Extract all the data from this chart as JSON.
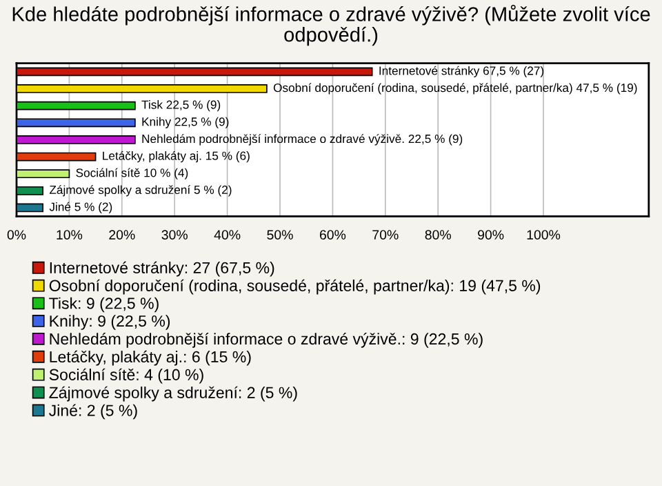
{
  "chart_data": {
    "type": "bar",
    "orientation": "horizontal",
    "title": "Kde hledáte podrobnější informace o zdravé výživě? (Můžete zvolit více odpovědí.)",
    "categories": [
      null,
      null,
      null,
      null,
      null,
      null,
      null,
      null,
      null
    ],
    "series": [
      {
        "name": "Internetové stránky: 27 (67,5 %)",
        "color": "#c8180c",
        "values": [
          67.5,
          null,
          null,
          null,
          null,
          null,
          null,
          null,
          null
        ],
        "value_labels": [
          "Internetové stránky 67,5 % (27)",
          null,
          null,
          null,
          null,
          null,
          null,
          null,
          null
        ]
      },
      {
        "name": "Osobní doporučení (rodina, sousedé, přátelé, partner/ka): 19 (47,5 %)",
        "color": "#f0d800",
        "values": [
          null,
          47.5,
          null,
          null,
          null,
          null,
          null,
          null,
          null
        ],
        "value_labels": [
          null,
          "Osobní doporučení (rodina, sousedé, přátelé, partner/ka) 47,5 % (19)",
          null,
          null,
          null,
          null,
          null,
          null,
          null
        ]
      },
      {
        "name": "Tisk: 9 (22,5 %)",
        "color": "#18c018",
        "values": [
          null,
          null,
          22.5,
          null,
          null,
          null,
          null,
          null,
          null
        ],
        "value_labels": [
          null,
          null,
          "Tisk 22,5 % (9)",
          null,
          null,
          null,
          null,
          null,
          null
        ]
      },
      {
        "name": "Knihy: 9 (22,5 %)",
        "color": "#3c64e8",
        "values": [
          null,
          null,
          null,
          22.5,
          null,
          null,
          null,
          null,
          null
        ],
        "value_labels": [
          null,
          null,
          null,
          "Knihy 22,5 % (9)",
          null,
          null,
          null,
          null,
          null
        ]
      },
      {
        "name": "Nehledám podrobnější informace o zdravé výživě.: 9 (22,5 %)",
        "color": "#c018d0",
        "values": [
          null,
          null,
          null,
          null,
          22.5,
          null,
          null,
          null,
          null
        ],
        "value_labels": [
          null,
          null,
          null,
          null,
          "Nehledám podrobnější informace o zdravé výživě. 22,5 % (9)",
          null,
          null,
          null,
          null
        ]
      },
      {
        "name": "Letáčky, plakáty aj.: 6 (15 %)",
        "color": "#e03c0c",
        "values": [
          null,
          null,
          null,
          null,
          null,
          15,
          null,
          null,
          null
        ],
        "value_labels": [
          null,
          null,
          null,
          null,
          null,
          "Letáčky, plakáty aj. 15 % (6)",
          null,
          null,
          null
        ]
      },
      {
        "name": "Sociální sítě: 4 (10 %)",
        "color": "#c0f070",
        "values": [
          null,
          null,
          null,
          null,
          null,
          null,
          10,
          null,
          null
        ],
        "value_labels": [
          null,
          null,
          null,
          null,
          null,
          null,
          "Sociální sítě 10 % (4)",
          null,
          null
        ]
      },
      {
        "name": "Zájmové spolky a sdružení: 2 (5 %)",
        "color": "#109050",
        "values": [
          null,
          null,
          null,
          null,
          null,
          null,
          null,
          5,
          null
        ],
        "value_labels": [
          null,
          null,
          null,
          null,
          null,
          null,
          null,
          "Zájmové spolky a sdružení 5 % (2)",
          null
        ]
      },
      {
        "name": "Jiné: 2 (5 %)",
        "color": "#1c7890",
        "values": [
          null,
          null,
          null,
          null,
          null,
          null,
          null,
          null,
          5
        ],
        "value_labels": [
          null,
          null,
          null,
          null,
          null,
          null,
          null,
          null,
          "Jiné 5 % (2)"
        ]
      }
    ],
    "xlim": [
      0,
      120
    ],
    "xticks": [
      {
        "value": 0,
        "label": "0%"
      },
      {
        "value": 10,
        "label": "10%"
      },
      {
        "value": 20,
        "label": "20%"
      },
      {
        "value": 30,
        "label": "30%"
      },
      {
        "value": 40,
        "label": "40%"
      },
      {
        "value": 50,
        "label": "50%"
      },
      {
        "value": 60,
        "label": "60%"
      },
      {
        "value": 70,
        "label": "70%"
      },
      {
        "value": 80,
        "label": "80%"
      },
      {
        "value": 90,
        "label": "90%"
      },
      {
        "value": 100,
        "label": "100%"
      }
    ],
    "grid": "x",
    "legend": "bottom"
  }
}
